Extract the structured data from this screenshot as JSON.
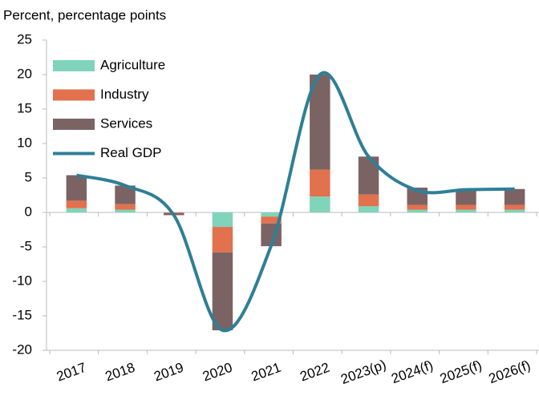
{
  "chart_data": {
    "type": "bar-line",
    "title": "Percent, percentage points",
    "categories": [
      "2017",
      "2018",
      "2019",
      "2020",
      "2021",
      "2022",
      "2023(p)",
      "2024(f)",
      "2025(f)",
      "2026(f)"
    ],
    "series": [
      {
        "name": "Agriculture",
        "color": "#7fd4b9",
        "values": [
          0.6,
          0.4,
          0,
          -2.1,
          -0.6,
          2.3,
          0.9,
          0.4,
          0.4,
          0.4
        ]
      },
      {
        "name": "Industry",
        "color": "#e2714e",
        "values": [
          1.1,
          0.8,
          -0.1,
          -3.7,
          -1.0,
          3.9,
          1.7,
          0.7,
          0.7,
          0.7
        ]
      },
      {
        "name": "Services",
        "color": "#7b6364",
        "values": [
          3.7,
          2.7,
          -0.3,
          -11.3,
          -3.3,
          13.8,
          5.5,
          2.5,
          2.2,
          2.3
        ]
      },
      {
        "name": "Real GDP",
        "color": "#2e7f96",
        "type": "line",
        "values": [
          5.4,
          3.9,
          -0.4,
          -17.1,
          -4.8,
          20,
          8.1,
          3.2,
          3.3,
          3.4
        ]
      }
    ],
    "ylim": [
      -20,
      25
    ],
    "yticks": [
      -20,
      -15,
      -10,
      -5,
      0,
      5,
      10,
      15,
      20,
      25
    ],
    "legend": "upper left"
  }
}
